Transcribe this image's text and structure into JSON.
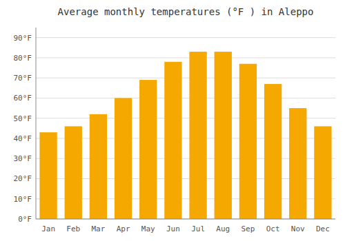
{
  "chart_data": {
    "type": "bar",
    "title": "Average monthly temperatures (°F ) in Aleppo",
    "categories": [
      "Jan",
      "Feb",
      "Mar",
      "Apr",
      "May",
      "Jun",
      "Jul",
      "Aug",
      "Sep",
      "Oct",
      "Nov",
      "Dec"
    ],
    "values": [
      43,
      46,
      52,
      60,
      69,
      78,
      83,
      83,
      77,
      67,
      55,
      46
    ],
    "color": "#F5A800",
    "ylim": [
      0,
      95
    ],
    "yticks": [
      {
        "value": 0,
        "label": "0°F"
      },
      {
        "value": 10,
        "label": "10°F"
      },
      {
        "value": 20,
        "label": "20°F"
      },
      {
        "value": 30,
        "label": "30°F"
      },
      {
        "value": 40,
        "label": "40°F"
      },
      {
        "value": 50,
        "label": "50°F"
      },
      {
        "value": 60,
        "label": "60°F"
      },
      {
        "value": 70,
        "label": "70°F"
      },
      {
        "value": 80,
        "label": "80°F"
      },
      {
        "value": 90,
        "label": "90°F"
      }
    ],
    "grid": true
  }
}
